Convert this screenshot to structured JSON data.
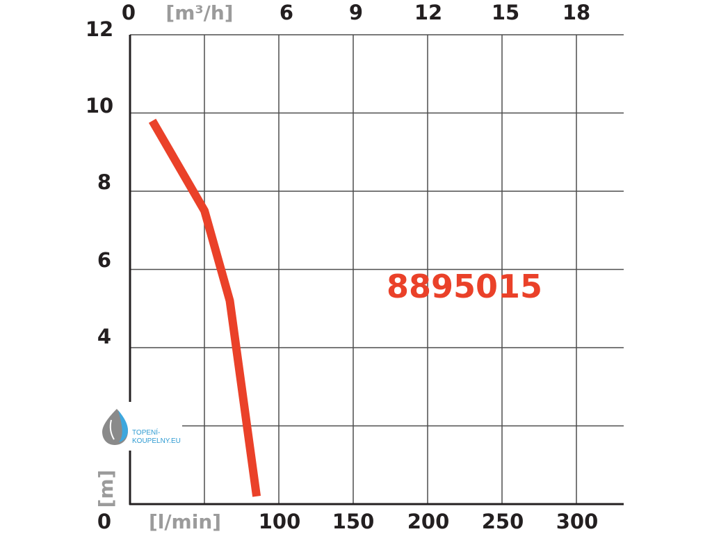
{
  "chart_data": {
    "type": "line",
    "title": "",
    "annotation": "8895015",
    "x_axis_bottom": {
      "unit_label": "[l/min]",
      "ticks": [
        "0",
        "100",
        "150",
        "200",
        "250",
        "300"
      ],
      "range": [
        0,
        333
      ]
    },
    "x_axis_top": {
      "unit_label": "[m³/h]",
      "ticks": [
        "0",
        "6",
        "9",
        "12",
        "15",
        "18"
      ],
      "range": [
        0,
        20
      ]
    },
    "y_axis": {
      "unit_label": "[m]",
      "ticks": [
        "0",
        "4",
        "6",
        "8",
        "10",
        "12"
      ],
      "range": [
        0,
        12
      ]
    },
    "grid": true,
    "series": [
      {
        "color": "#ea4129",
        "x": [
          15,
          50,
          67,
          85
        ],
        "y": [
          9.8,
          7.5,
          5.2,
          0.2
        ]
      }
    ]
  },
  "watermark": {
    "line1": "TOPENÍ-",
    "line2": "KOUPELNY.EU"
  }
}
